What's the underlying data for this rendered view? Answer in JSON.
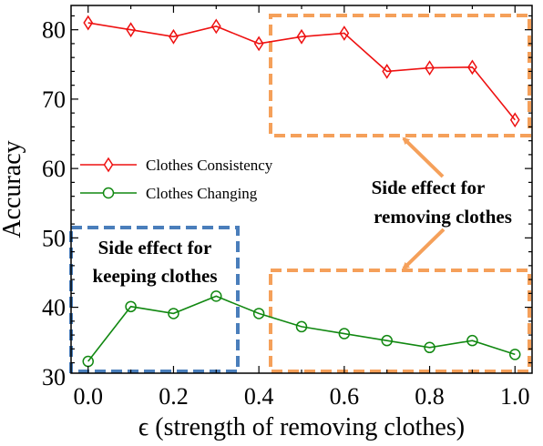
{
  "chart_data": {
    "type": "line",
    "x": [
      0.0,
      0.1,
      0.2,
      0.3,
      0.4,
      0.5,
      0.6,
      0.7,
      0.8,
      0.9,
      1.0
    ],
    "xlim": [
      -0.04,
      1.04
    ],
    "ylim": [
      30.5,
      83.5
    ],
    "xticks": [
      "0.0",
      "0.2",
      "0.4",
      "0.6",
      "0.8",
      "1.0"
    ],
    "yticks": [
      "30",
      "40",
      "50",
      "60",
      "70",
      "80"
    ],
    "xlabel": "ϵ (strength of removing clothes)",
    "ylabel": "Accuracy",
    "grid": false,
    "legend": "center-left",
    "series": [
      {
        "name": "Clothes Consistency",
        "color": "#ee1111",
        "marker": "diamond",
        "values": [
          81.0,
          80.0,
          79.0,
          80.5,
          78.0,
          79.0,
          79.5,
          74.0,
          74.5,
          74.6,
          67.0
        ]
      },
      {
        "name": "Clothes Changing",
        "color": "#118811",
        "marker": "circle",
        "values": [
          32.2,
          40.1,
          39.1,
          41.6,
          39.1,
          37.2,
          36.2,
          35.2,
          34.2,
          35.2,
          33.2
        ]
      }
    ],
    "annotations": [
      {
        "line1": "Side effect for",
        "line2": "removing clothes",
        "color": "#f5a05a"
      },
      {
        "line1": "Side effect for",
        "line2": "keeping clothes",
        "color": "#4a7ebb"
      }
    ]
  }
}
